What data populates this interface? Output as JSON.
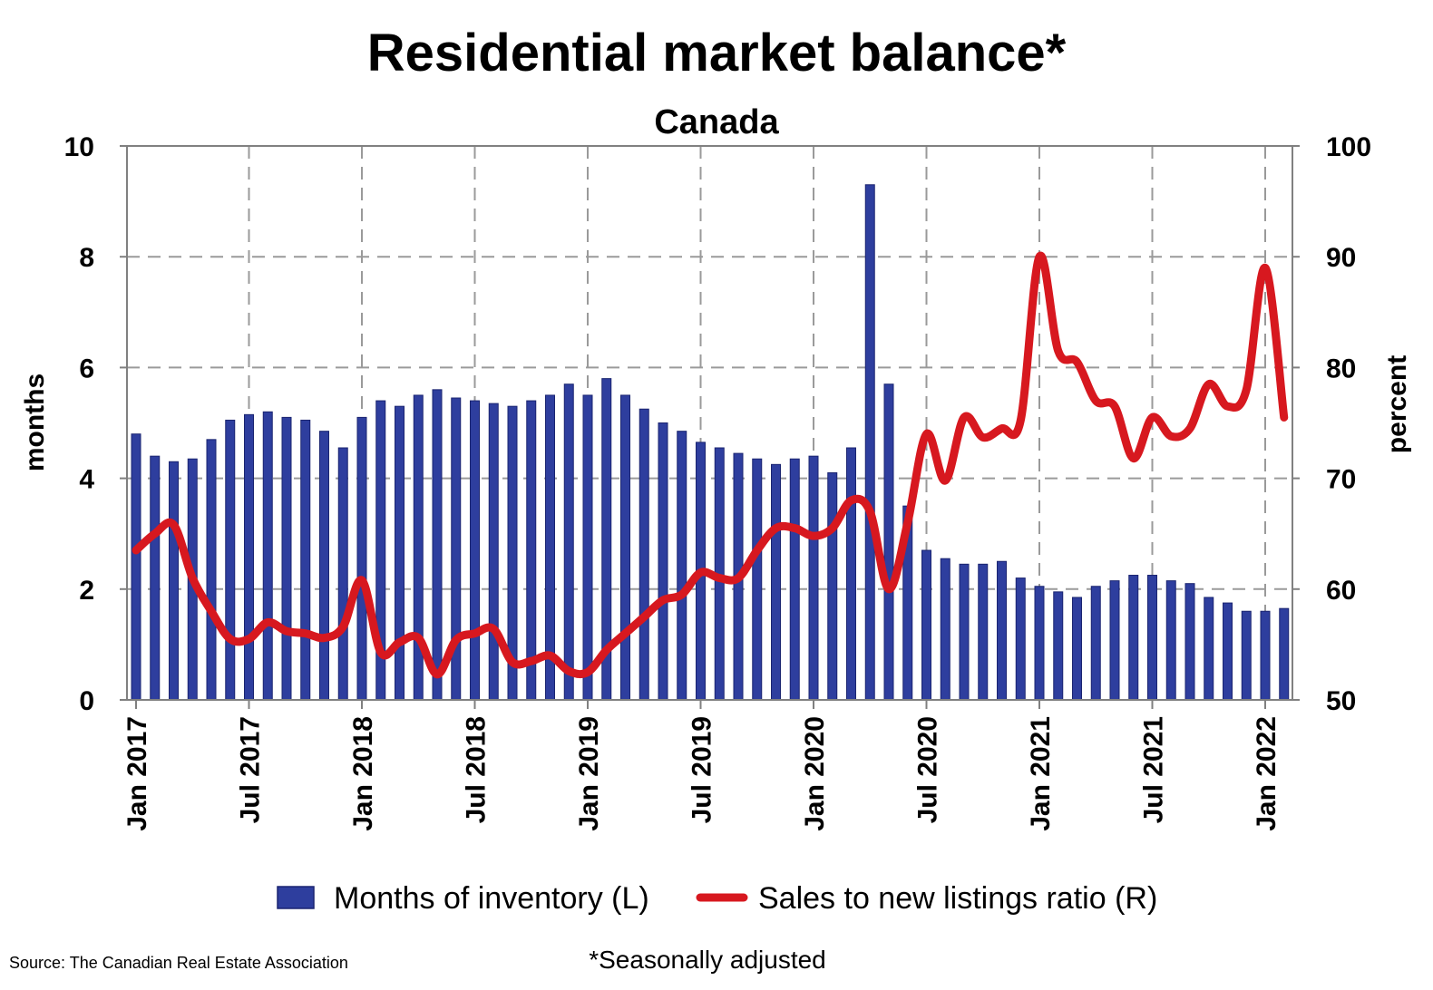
{
  "chart_data": {
    "type": "bar+line",
    "title": "Residential market balance*",
    "subtitle": "Canada",
    "y_left_label": "months",
    "y_right_label": "percent",
    "y_left_lim": [
      0,
      10
    ],
    "y_right_lim": [
      50,
      100
    ],
    "y_left_ticks": [
      "0",
      "2",
      "4",
      "6",
      "8",
      "10"
    ],
    "y_right_ticks": [
      "50",
      "60",
      "70",
      "80",
      "90",
      "100"
    ],
    "x_tick_labels": [
      "Jan 2017",
      "Jul 2017",
      "Jan 2018",
      "Jul 2018",
      "Jan 2019",
      "Jul 2019",
      "Jan 2020",
      "Jul 2020",
      "Jan 2021",
      "Jul 2021",
      "Jan 2022"
    ],
    "x_start": "Jan 2017",
    "x_end": "Mar 2022",
    "grid": true,
    "legend_position": "bottom",
    "series": [
      {
        "name": "Months of inventory (L)",
        "kind": "bar",
        "axis": "left",
        "color": "#2E3E9E",
        "values": [
          4.8,
          4.4,
          4.3,
          4.35,
          4.7,
          5.05,
          5.15,
          5.2,
          5.1,
          5.05,
          4.85,
          4.55,
          5.1,
          5.4,
          5.3,
          5.5,
          5.6,
          5.45,
          5.4,
          5.35,
          5.3,
          5.4,
          5.5,
          5.7,
          5.5,
          5.8,
          5.5,
          5.25,
          5.0,
          4.85,
          4.65,
          4.55,
          4.45,
          4.35,
          4.25,
          4.35,
          4.4,
          4.1,
          4.55,
          9.3,
          5.7,
          3.5,
          2.7,
          2.55,
          2.45,
          2.45,
          2.5,
          2.2,
          2.05,
          1.95,
          1.85,
          2.05,
          2.15,
          2.25,
          2.25,
          2.15,
          2.1,
          1.85,
          1.75,
          1.6,
          1.6,
          1.65
        ]
      },
      {
        "name": "Sales to new listings ratio (R)",
        "kind": "line",
        "axis": "right",
        "color": "#D7181F",
        "values": [
          63.5,
          65.0,
          65.8,
          61.0,
          58.0,
          55.5,
          55.5,
          57.0,
          56.2,
          56.0,
          55.6,
          56.6,
          60.8,
          54.3,
          55.2,
          55.6,
          52.3,
          55.4,
          56.0,
          56.4,
          53.4,
          53.5,
          54.0,
          52.6,
          52.5,
          54.5,
          56.0,
          57.5,
          59.0,
          59.5,
          61.5,
          61.0,
          61.0,
          63.5,
          65.5,
          65.5,
          64.8,
          65.5,
          68.0,
          67.0,
          60.0,
          66.0,
          74.0,
          69.8,
          75.5,
          73.7,
          74.5,
          75.2,
          90.0,
          81.5,
          80.5,
          77.0,
          76.5,
          71.8,
          75.5,
          73.8,
          74.5,
          78.5,
          76.5,
          78.0,
          89.0,
          75.5
        ]
      }
    ]
  },
  "legend": {
    "bars_label": "Months of inventory (L)",
    "line_label": "Sales to new listings ratio (R)"
  },
  "footer": {
    "source": "Source: The Canadian Real Estate Association",
    "note": "*Seasonally adjusted"
  },
  "colors": {
    "bars": "#2E3E9E",
    "line": "#D7181F"
  }
}
